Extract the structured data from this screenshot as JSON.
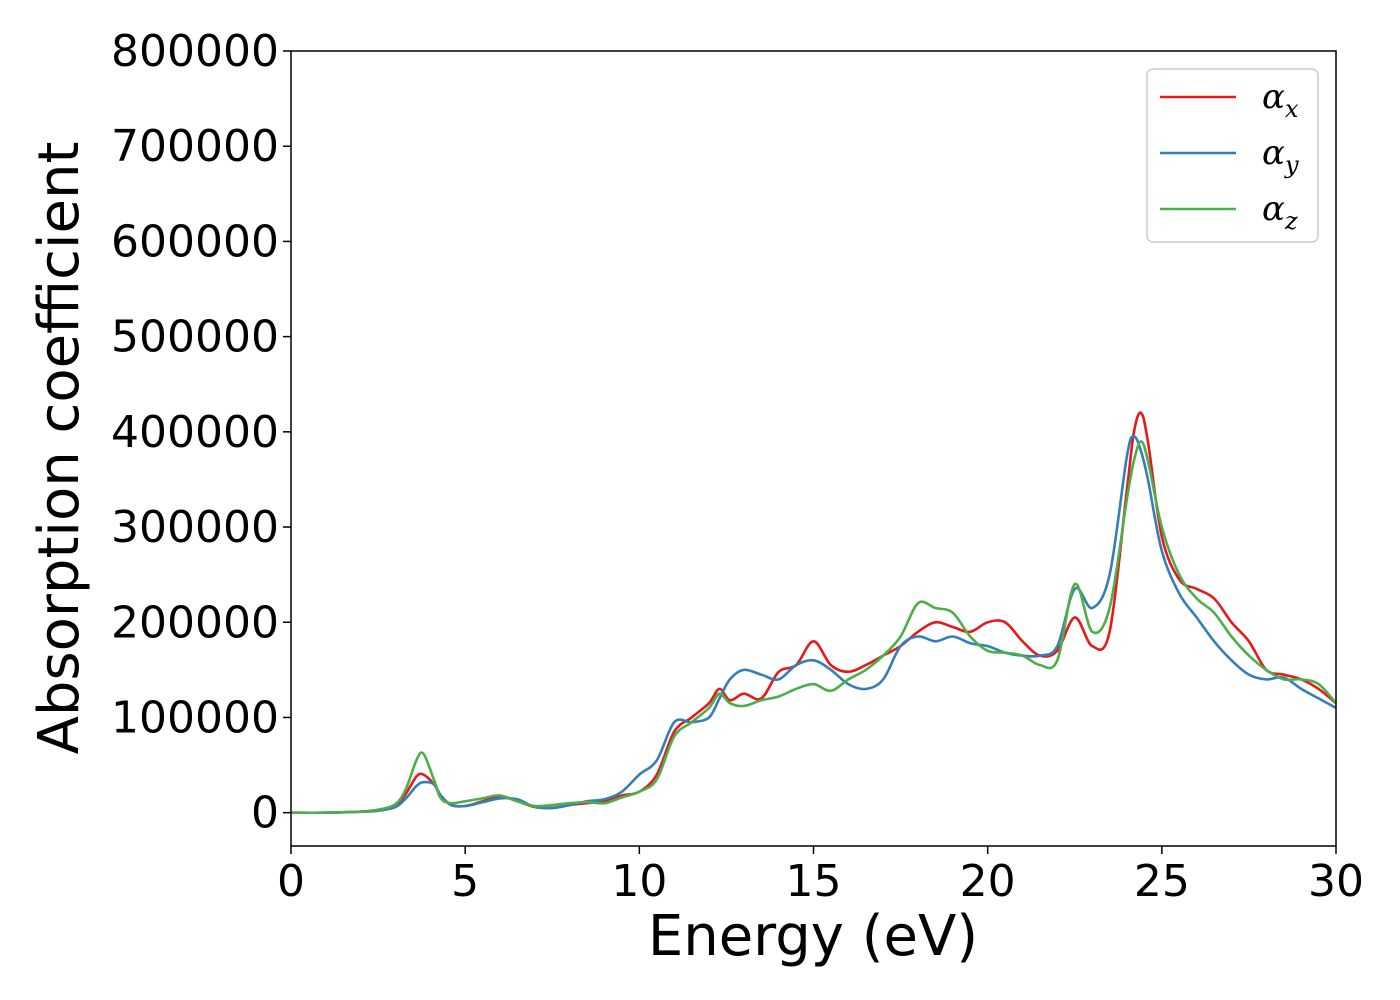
{
  "chart_data": {
    "type": "line",
    "xlabel": "Energy (eV)",
    "ylabel": "Absorption coefficient",
    "xlim": [
      0,
      30
    ],
    "ylim": [
      -35000,
      800000
    ],
    "xticks": [
      "0",
      "5",
      "10",
      "15",
      "20",
      "25",
      "30"
    ],
    "yticks": [
      "0",
      "100000",
      "200000",
      "300000",
      "400000",
      "500000",
      "600000",
      "700000",
      "800000"
    ],
    "grid": false,
    "legend_position": "top-right",
    "series": [
      {
        "name": "α",
        "subscript": "x",
        "color": "#e41a1c",
        "x": [
          0,
          1,
          2,
          2.5,
          3,
          3.3,
          3.6,
          3.8,
          4.1,
          4.3,
          4.6,
          5,
          5.5,
          6,
          6.5,
          7,
          7.5,
          8,
          8.5,
          9,
          9.5,
          10,
          10.5,
          11,
          11.5,
          12,
          12.3,
          12.6,
          13,
          13.5,
          14,
          14.5,
          15,
          15.5,
          16,
          16.5,
          17,
          17.5,
          18,
          18.5,
          19,
          19.5,
          20,
          20.5,
          21,
          21.5,
          22,
          22.5,
          23,
          23.5,
          24,
          24.2,
          24.4,
          24.6,
          25,
          25.5,
          26,
          26.5,
          27,
          27.5,
          28,
          28.5,
          29,
          29.5,
          30
        ],
        "y": [
          0,
          0,
          1000,
          3000,
          8000,
          20000,
          38000,
          40000,
          30000,
          18000,
          8000,
          7000,
          12000,
          17000,
          12000,
          6000,
          5000,
          8000,
          10000,
          12000,
          18000,
          22000,
          40000,
          85000,
          100000,
          115000,
          130000,
          118000,
          125000,
          120000,
          148000,
          155000,
          180000,
          155000,
          148000,
          155000,
          165000,
          175000,
          190000,
          200000,
          195000,
          190000,
          200000,
          200000,
          180000,
          165000,
          170000,
          205000,
          175000,
          190000,
          340000,
          400000,
          420000,
          390000,
          290000,
          245000,
          235000,
          225000,
          200000,
          180000,
          150000,
          145000,
          140000,
          130000,
          115000
        ]
      },
      {
        "name": "α",
        "subscript": "y",
        "color": "#377eb8",
        "x": [
          0,
          1,
          2,
          2.5,
          3,
          3.3,
          3.6,
          3.8,
          4.1,
          4.3,
          4.6,
          5,
          5.5,
          6,
          6.5,
          7,
          7.5,
          8,
          8.5,
          9,
          9.5,
          10,
          10.5,
          11,
          11.5,
          12,
          12.3,
          12.6,
          13,
          13.5,
          14,
          14.5,
          15,
          15.5,
          16,
          16.5,
          17,
          17.5,
          18,
          18.5,
          19,
          19.5,
          20,
          20.5,
          21,
          21.5,
          22,
          22.5,
          23,
          23.5,
          24,
          24.2,
          24.4,
          24.6,
          25,
          25.5,
          26,
          26.5,
          27,
          27.5,
          28,
          28.5,
          29,
          29.5,
          30
        ],
        "y": [
          0,
          0,
          1000,
          2000,
          6000,
          15000,
          28000,
          32000,
          30000,
          18000,
          8000,
          7000,
          11000,
          15000,
          14000,
          6000,
          5000,
          8000,
          12000,
          14000,
          22000,
          40000,
          55000,
          95000,
          95000,
          100000,
          120000,
          140000,
          150000,
          145000,
          140000,
          155000,
          160000,
          150000,
          135000,
          130000,
          140000,
          175000,
          185000,
          180000,
          185000,
          178000,
          175000,
          168000,
          165000,
          165000,
          175000,
          235000,
          215000,
          250000,
          375000,
          395000,
          380000,
          350000,
          275000,
          230000,
          205000,
          180000,
          160000,
          145000,
          140000,
          142000,
          130000,
          120000,
          110000
        ]
      },
      {
        "name": "α",
        "subscript": "z",
        "color": "#4daf4a",
        "x": [
          0,
          1,
          2,
          2.5,
          3,
          3.3,
          3.6,
          3.8,
          4.1,
          4.3,
          4.6,
          5,
          5.5,
          6,
          6.5,
          7,
          7.5,
          8,
          8.5,
          9,
          9.5,
          10,
          10.5,
          11,
          11.5,
          12,
          12.3,
          12.6,
          13,
          13.5,
          14,
          14.5,
          15,
          15.5,
          16,
          16.5,
          17,
          17.5,
          18,
          18.5,
          19,
          19.5,
          20,
          20.5,
          21,
          21.5,
          22,
          22.5,
          23,
          23.5,
          24,
          24.2,
          24.4,
          24.6,
          25,
          25.5,
          26,
          26.5,
          27,
          27.5,
          28,
          28.5,
          29,
          29.5,
          30
        ],
        "y": [
          0,
          0,
          1000,
          3000,
          9000,
          25000,
          55000,
          62000,
          35000,
          15000,
          10000,
          12000,
          15000,
          18000,
          12000,
          7000,
          8000,
          10000,
          11000,
          10000,
          16000,
          22000,
          35000,
          80000,
          95000,
          110000,
          125000,
          115000,
          112000,
          118000,
          122000,
          130000,
          135000,
          128000,
          140000,
          150000,
          165000,
          185000,
          220000,
          215000,
          210000,
          185000,
          170000,
          168000,
          165000,
          155000,
          160000,
          240000,
          190000,
          215000,
          330000,
          370000,
          390000,
          370000,
          300000,
          250000,
          225000,
          210000,
          185000,
          165000,
          150000,
          140000,
          140000,
          135000,
          115000
        ]
      }
    ]
  }
}
